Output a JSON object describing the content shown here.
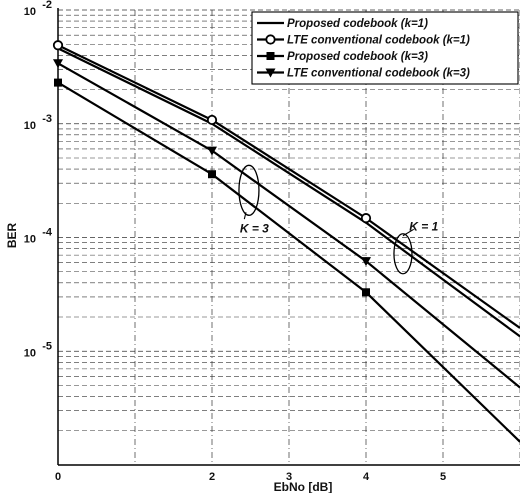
{
  "chart_data": {
    "type": "line",
    "xlabel": "EbNo [dB]",
    "ylabel": "BER",
    "xlim": [
      0,
      6
    ],
    "ylim": [
      1e-06,
      0.01
    ],
    "yscale": "log",
    "grid": true,
    "legend_position": "top-right",
    "x_ticks": [
      0,
      2,
      3,
      4,
      5
    ],
    "x_tick_labels": [
      "0",
      "2",
      "3",
      "4",
      "5"
    ],
    "y_ticks": [
      0.01,
      0.001,
      0.0001,
      1e-05
    ],
    "y_tick_labels": [
      {
        "base": "10",
        "exp": "-2"
      },
      {
        "base": "10",
        "exp": "-3"
      },
      {
        "base": "10",
        "exp": "-4"
      },
      {
        "base": "10",
        "exp": "-5"
      }
    ],
    "series": [
      {
        "name": "Proposed codebook (k=1)",
        "marker": "none",
        "x": [
          0,
          2,
          4,
          6
        ],
        "y": [
          0.0046,
          0.001,
          0.000135,
          1.35e-05
        ]
      },
      {
        "name": "LTE conventional codebook (k=1)",
        "marker": "circle",
        "x": [
          0,
          2,
          4,
          6
        ],
        "y": [
          0.0049,
          0.00108,
          0.000148,
          1.6e-05
        ]
      },
      {
        "name": "Proposed codebook (k=3)",
        "marker": "square",
        "x": [
          0,
          2,
          4,
          6
        ],
        "y": [
          0.0023,
          0.00036,
          3.3e-05,
          1.6e-06
        ]
      },
      {
        "name": "LTE conventional codebook (k=3)",
        "marker": "triangle-down",
        "x": [
          0,
          2,
          4,
          6
        ],
        "y": [
          0.0034,
          0.00058,
          6.2e-05,
          4.8e-06
        ]
      }
    ],
    "annotations": [
      {
        "text": "K = 3",
        "x": 2.55,
        "y": 0.00012
      },
      {
        "text": "K = 1",
        "x": 4.75,
        "y": 0.000125
      }
    ]
  }
}
